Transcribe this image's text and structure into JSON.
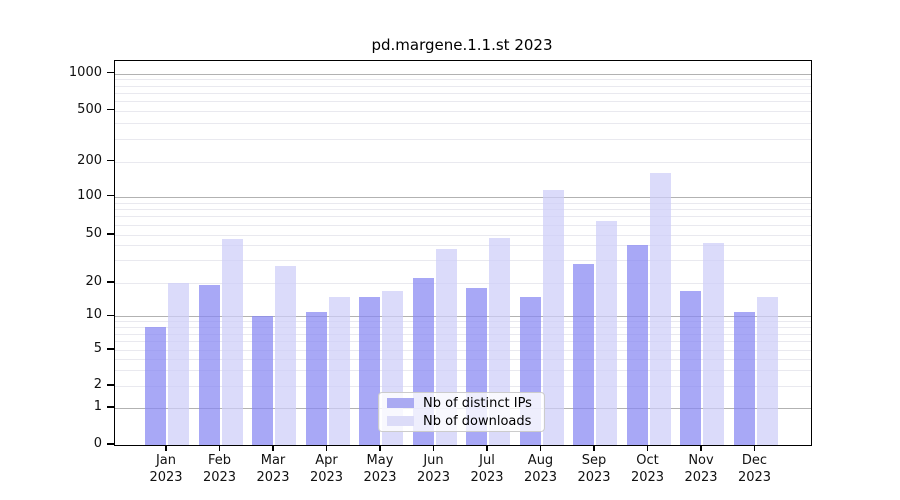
{
  "figure": {
    "title": "pd.margene.1.1.st 2023"
  },
  "chart_data": {
    "type": "bar",
    "title": "pd.margene.1.1.st 2023",
    "categories": [
      "Jan 2023",
      "Feb 2023",
      "Mar 2023",
      "Apr 2023",
      "May 2023",
      "Jun 2023",
      "Jul 2023",
      "Aug 2023",
      "Sep 2023",
      "Oct 2023",
      "Nov 2023",
      "Dec 2023"
    ],
    "series": [
      {
        "name": "Nb of distinct IPs",
        "values": [
          8,
          19,
          10,
          11,
          15,
          22,
          18,
          15,
          28,
          40,
          17,
          11
        ]
      },
      {
        "name": "Nb of downloads",
        "values": [
          20,
          46,
          27,
          15,
          17,
          37,
          47,
          113,
          65,
          160,
          42,
          15
        ]
      }
    ],
    "xlabel": "",
    "ylabel": "",
    "yscale": "symlog",
    "ytick_labels": [
      "0",
      "1",
      "2",
      "5",
      "10",
      "20",
      "50",
      "100",
      "200",
      "500",
      "1000"
    ],
    "yticks": [
      0,
      1,
      2,
      5,
      10,
      20,
      50,
      100,
      200,
      500,
      1000
    ],
    "ylim": [
      0,
      1250
    ],
    "grid": true,
    "legend_position": "lower center"
  },
  "legend": {
    "items": [
      {
        "label": "Nb of distinct IPs",
        "swatch_color": "#aaaaf2"
      },
      {
        "label": "Nb of downloads",
        "swatch_color": "#dcdcf8"
      }
    ]
  },
  "colors": {
    "ip_fill": "rgba(134,134,242,0.72)",
    "dl_fill": "rgba(205,205,248,0.72)",
    "grid_major": "#b2b2b2",
    "grid_minor": "#e9e9ef",
    "axis": "#000000"
  }
}
